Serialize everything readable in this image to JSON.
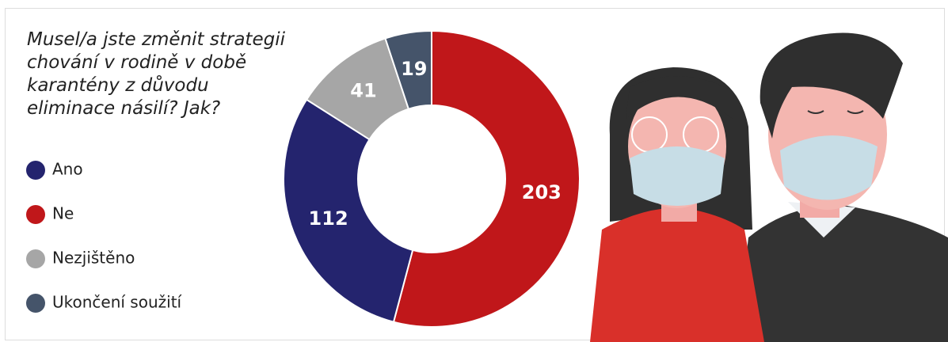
{
  "chart_data": {
    "type": "donut",
    "title": "Musel/a jste změnit strategii chování v rodině v době karantény z důvodu eliminace násilí? Jak?",
    "categories": [
      "Ne",
      "Ano",
      "Nezjištěno",
      "Ukončení soužití"
    ],
    "values": [
      203,
      112,
      41,
      19
    ],
    "colors": [
      "#c0171a",
      "#24246e",
      "#a6a6a6",
      "#45546a"
    ],
    "legend_order": [
      "Ano",
      "Ne",
      "Nezjištěno",
      "Ukončení soužití"
    ]
  }
}
